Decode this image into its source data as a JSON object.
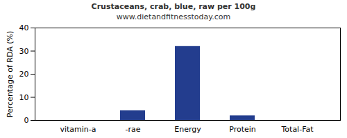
{
  "chart_data": {
    "type": "bar",
    "title": "Crustaceans, crab, blue, raw per 100g",
    "subtitle": "www.dietandfitnesstoday.com",
    "y_label": "Percentage of RDA (%)",
    "categories": [
      "vitamin-a",
      "-rae",
      "Energy",
      "Protein",
      "Total-Fat"
    ],
    "values": [
      0,
      4.2,
      32,
      2,
      0
    ],
    "color": "#233d8e",
    "ylim": [
      0,
      40
    ],
    "yticks": [
      0,
      10,
      20,
      30,
      40
    ],
    "grid": false
  }
}
